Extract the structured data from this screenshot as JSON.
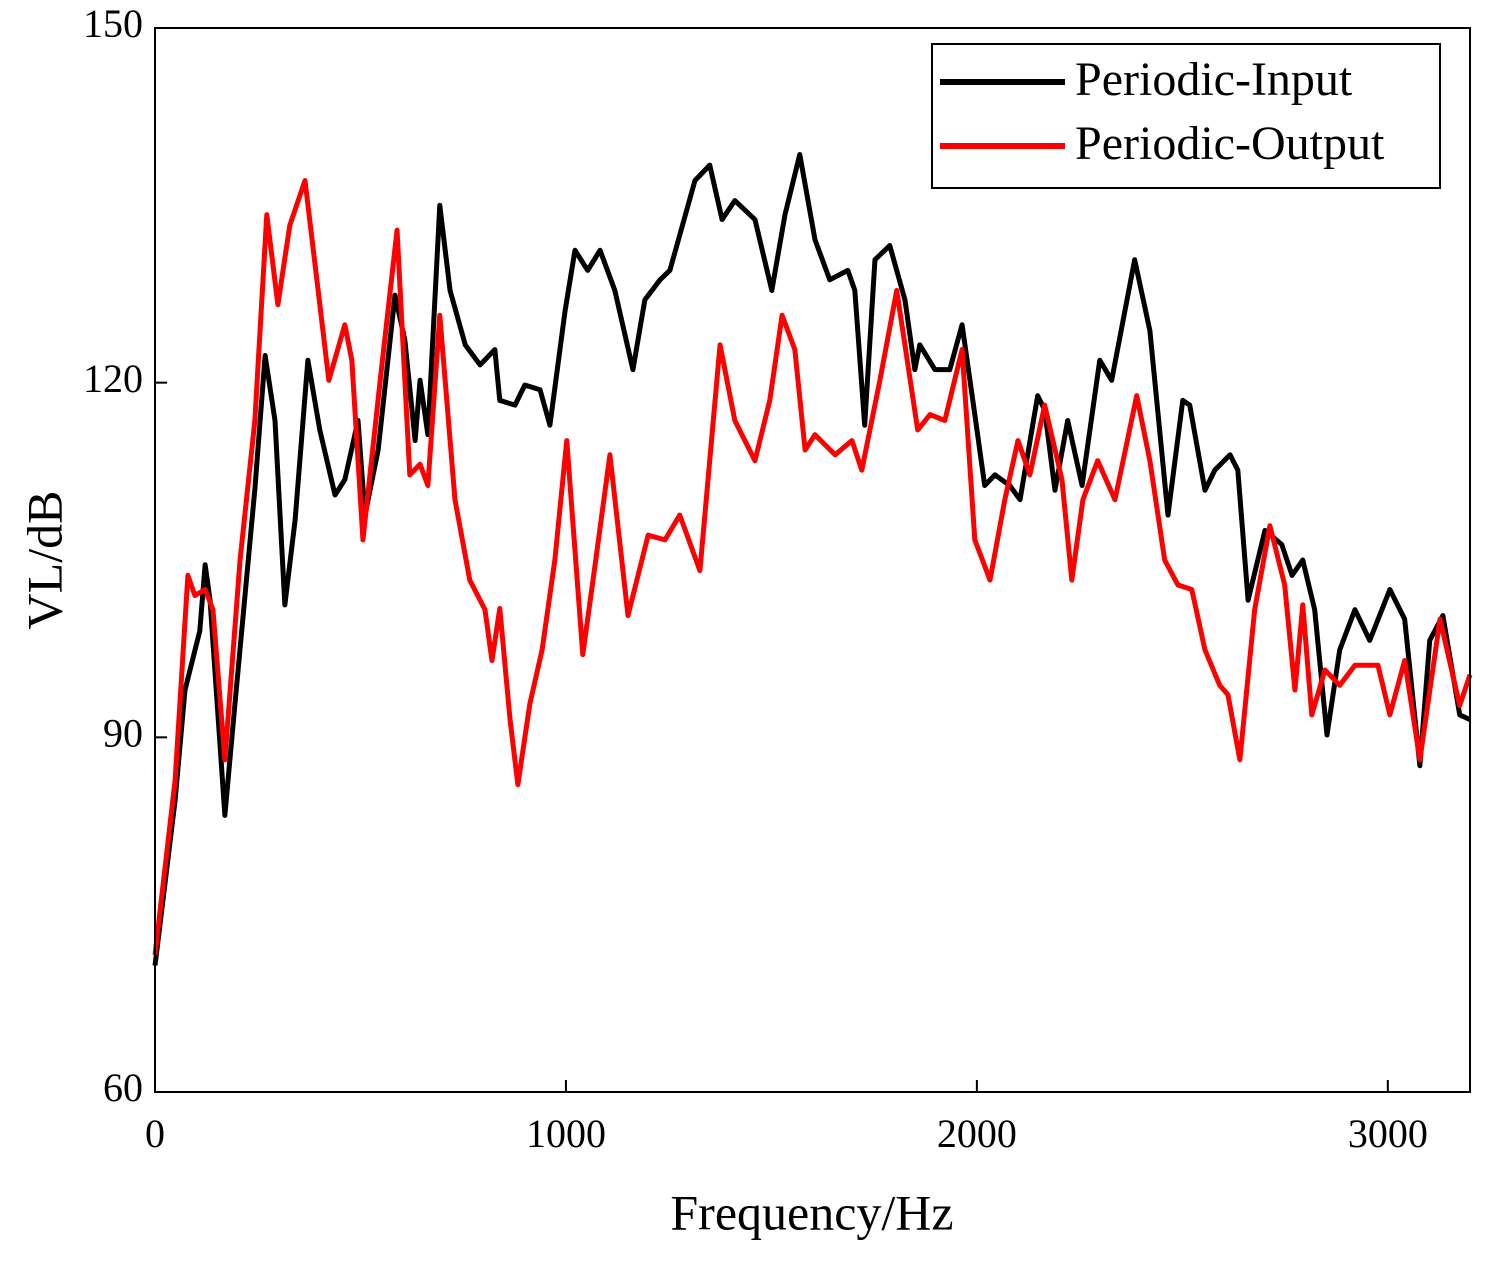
{
  "chart_data": {
    "type": "line",
    "xlabel": "Frequency/Hz",
    "ylabel": "VL/dB",
    "xlim": [
      0,
      3200
    ],
    "xticks": [
      0,
      1000,
      2000,
      3000
    ],
    "ylim": [
      60,
      150
    ],
    "yticks": [
      60,
      90,
      120,
      150
    ],
    "legend": "upper right",
    "series": [
      {
        "name": "Periodic-Input",
        "color": "#000000",
        "x": [
          0,
          49,
          73,
          109,
          122,
          134,
          170,
          195,
          243,
          268,
          292,
          316,
          341,
          372,
          401,
          438,
          462,
          494,
          511,
          543,
          584,
          608,
          633,
          645,
          664,
          693,
          718,
          755,
          791,
          827,
          839,
          876,
          900,
          937,
          961,
          998,
          1022,
          1053,
          1083,
          1119,
          1163,
          1192,
          1229,
          1253,
          1314,
          1350,
          1380,
          1411,
          1460,
          1501,
          1533,
          1569,
          1606,
          1642,
          1686,
          1703,
          1727,
          1752,
          1788,
          1825,
          1849,
          1861,
          1898,
          1934,
          1964,
          1995,
          2019,
          2044,
          2080,
          2105,
          2148,
          2165,
          2190,
          2221,
          2256,
          2299,
          2328,
          2384,
          2421,
          2465,
          2501,
          2518,
          2555,
          2579,
          2616,
          2635,
          2660,
          2701,
          2742,
          2767,
          2793,
          2822,
          2852,
          2883,
          2920,
          2956,
          3005,
          3041,
          3078,
          3102,
          3134,
          3175,
          3200
        ],
        "values": [
          70.7,
          84.7,
          94,
          99,
          104.6,
          101.6,
          83.4,
          93,
          111,
          122.3,
          116.8,
          101.2,
          108.4,
          121.9,
          116,
          110.5,
          111.8,
          116.8,
          108.8,
          114.3,
          127.4,
          123.6,
          115.1,
          120.2,
          115.6,
          135,
          127.8,
          123.2,
          121.5,
          122.8,
          118.5,
          118.1,
          119.8,
          119.4,
          116.4,
          126.1,
          131.2,
          129.5,
          131.2,
          127.8,
          121.1,
          127,
          128.7,
          129.5,
          137.1,
          138.4,
          133.8,
          135.4,
          133.8,
          127.8,
          134.2,
          139.3,
          132.1,
          128.7,
          129.5,
          127.8,
          116.4,
          130.4,
          131.6,
          127,
          121.1,
          123.2,
          121.1,
          121.1,
          124.9,
          117.3,
          111.3,
          112.2,
          111.3,
          110.1,
          118.9,
          117.7,
          110.9,
          116.8,
          111.3,
          121.9,
          120.2,
          130.4,
          124.4,
          108.8,
          118.5,
          118.1,
          110.9,
          112.6,
          113.9,
          112.6,
          101.6,
          107.5,
          106.3,
          103.7,
          105,
          100.8,
          90.2,
          97.4,
          100.8,
          98.2,
          102.5,
          100,
          87.6,
          98.2,
          100.3,
          91.9,
          91.5
        ]
      },
      {
        "name": "Periodic-Output",
        "color": "#ff0000",
        "x": [
          0,
          49,
          80,
          97,
          122,
          141,
          170,
          207,
          243,
          272,
          299,
          328,
          365,
          397,
          423,
          462,
          479,
          506,
          548,
          589,
          620,
          645,
          664,
          693,
          730,
          766,
          803,
          820,
          839,
          864,
          883,
          912,
          942,
          973,
          1002,
          1041,
          1071,
          1107,
          1151,
          1200,
          1241,
          1277,
          1326,
          1375,
          1411,
          1460,
          1496,
          1526,
          1557,
          1582,
          1606,
          1655,
          1696,
          1720,
          1764,
          1805,
          1856,
          1886,
          1922,
          1964,
          1995,
          2032,
          2068,
          2100,
          2129,
          2165,
          2207,
          2231,
          2258,
          2294,
          2336,
          2389,
          2421,
          2457,
          2489,
          2523,
          2555,
          2591,
          2611,
          2640,
          2676,
          2713,
          2749,
          2774,
          2793,
          2815,
          2847,
          2883,
          2920,
          2976,
          3005,
          3041,
          3078,
          3127,
          3175,
          3200
        ],
        "values": [
          71.6,
          86.4,
          103.7,
          102,
          102.5,
          100.8,
          88.1,
          105,
          116.8,
          134.2,
          126.6,
          133.3,
          137.1,
          127.8,
          120.2,
          124.9,
          121.9,
          106.7,
          120.2,
          132.9,
          112.2,
          113.1,
          111.3,
          125.7,
          110.1,
          103.3,
          100.8,
          96.5,
          100.9,
          91.5,
          86,
          92.8,
          97.4,
          105,
          115.1,
          97,
          104.6,
          113.9,
          100.3,
          107.1,
          106.7,
          108.8,
          104.1,
          123.2,
          116.8,
          113.4,
          118.5,
          125.7,
          122.8,
          114.3,
          115.6,
          113.9,
          115.1,
          112.6,
          120.2,
          127.8,
          116,
          117.3,
          116.8,
          122.8,
          106.7,
          103.3,
          110.1,
          115.1,
          112.2,
          118.1,
          111.8,
          103.3,
          110.1,
          113.4,
          110.1,
          118.9,
          113.4,
          105,
          102.9,
          102.5,
          97.4,
          94.4,
          93.6,
          88.1,
          100.8,
          107.9,
          102.9,
          94,
          101.2,
          91.9,
          95.7,
          94.4,
          96.1,
          96.1,
          91.9,
          96.5,
          88.1,
          100,
          92.7,
          95.3
        ]
      }
    ]
  }
}
